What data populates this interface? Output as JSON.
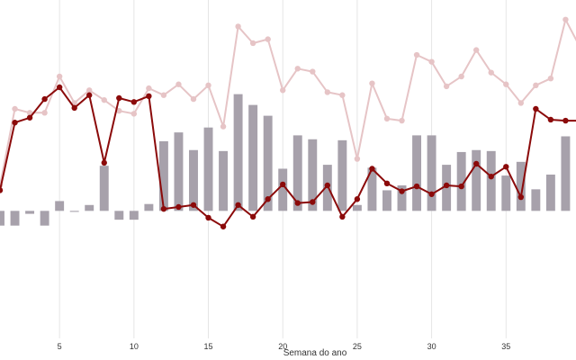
{
  "chart_data": {
    "type": "line",
    "title": "",
    "xlabel": "Semana do ano",
    "ylabel": "",
    "x": [
      1,
      2,
      3,
      4,
      5,
      6,
      7,
      8,
      9,
      10,
      11,
      12,
      13,
      14,
      15,
      16,
      17,
      18,
      19,
      20,
      21,
      22,
      23,
      24,
      25,
      26,
      27,
      28,
      29,
      30,
      31,
      32,
      33,
      34,
      35,
      36,
      37,
      38,
      39,
      40
    ],
    "xlim": [
      1,
      39.7
    ],
    "x_ticks": [
      5,
      10,
      15,
      20,
      25,
      30,
      35
    ],
    "grid": "vertical",
    "legend": "none",
    "series": [
      {
        "color": "#e6c4c6",
        "values": [
          26,
          104,
          100,
          100,
          137,
          110,
          123,
          113,
          102,
          99,
          125,
          118,
          129,
          114,
          128,
          86,
          188,
          171,
          175,
          123,
          145,
          142,
          121,
          118,
          53,
          130,
          94,
          92,
          159,
          152,
          127,
          137,
          164,
          141,
          129,
          110,
          128,
          135,
          195,
          166
        ]
      },
      {
        "color": "#8b0a0a",
        "values": [
          21,
          90,
          95,
          114,
          126,
          105,
          118,
          49,
          115,
          111,
          117,
          2,
          4,
          6,
          -7,
          -16,
          6,
          -6,
          12,
          27,
          8,
          9,
          26,
          -6,
          12,
          43,
          28,
          20,
          25,
          17,
          26,
          25,
          48,
          35,
          45,
          14,
          104,
          93,
          92,
          92
        ]
      },
      {
        "type": "bar",
        "color": "#a7a1ab",
        "values": [
          -15,
          -15,
          -3,
          -15,
          10,
          -1,
          6,
          46,
          -9,
          -9,
          7,
          71,
          80,
          62,
          85,
          61,
          119,
          108,
          97,
          43,
          77,
          73,
          47,
          72,
          6,
          44,
          21,
          26,
          77,
          77,
          47,
          60,
          62,
          61,
          36,
          50,
          22,
          37,
          76,
          61
        ]
      }
    ],
    "ylim": [
      -130,
      215
    ]
  }
}
